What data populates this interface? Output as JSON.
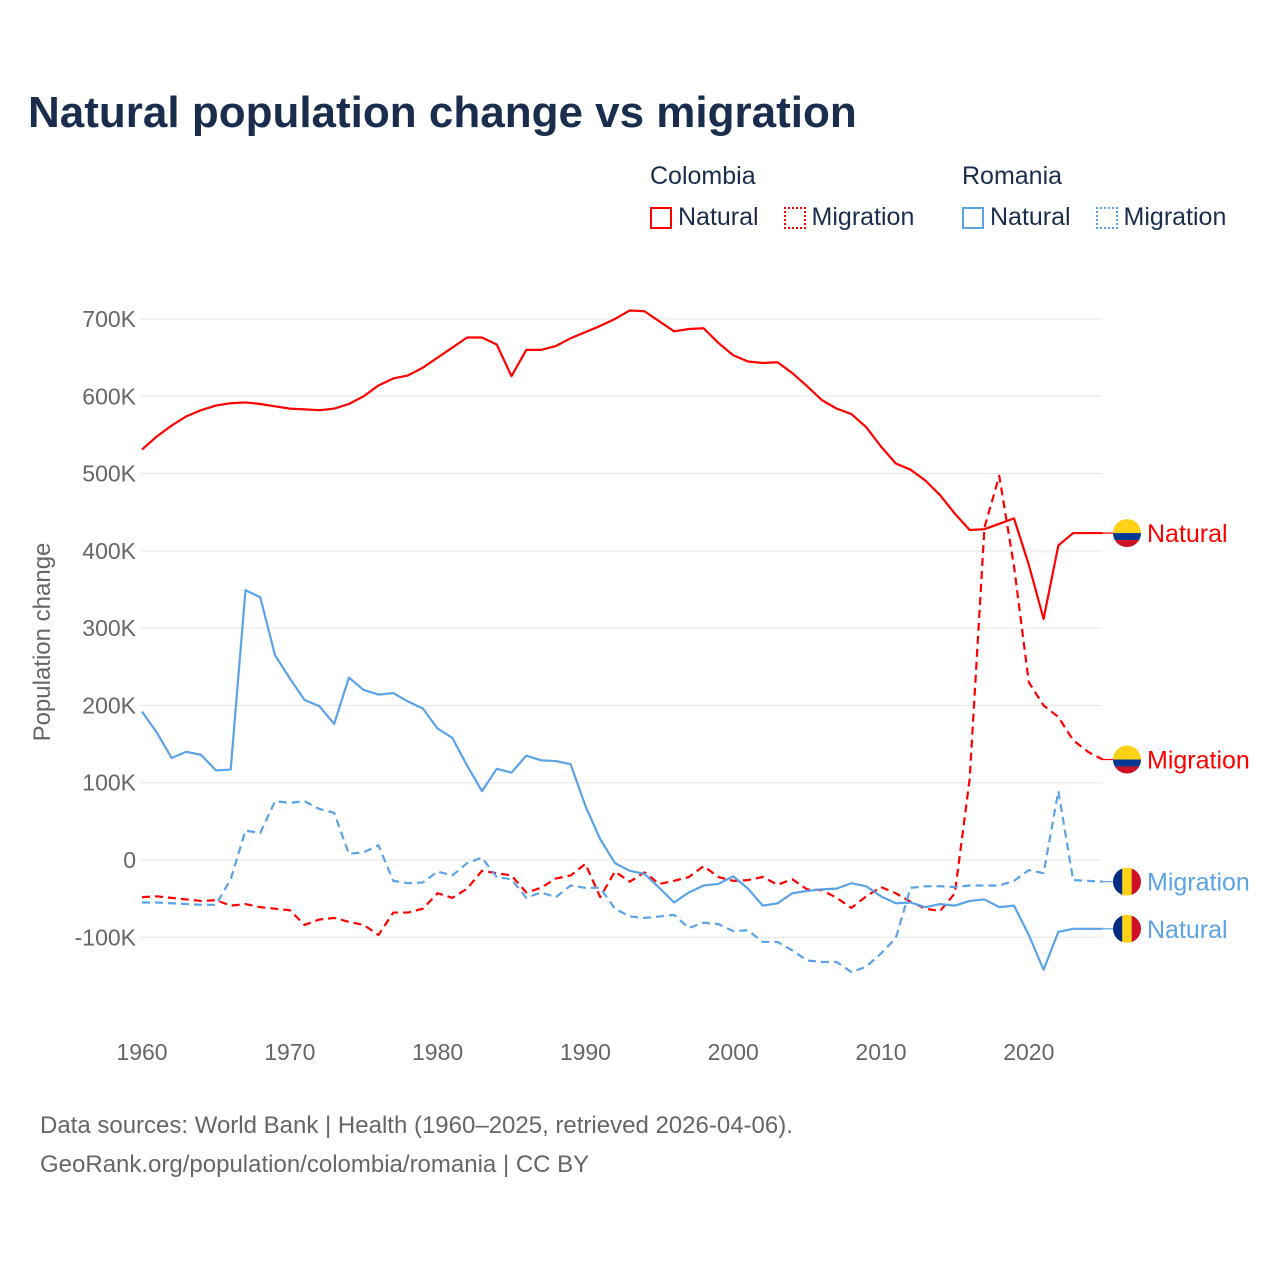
{
  "title": "Natural population change vs migration",
  "legend": {
    "groups": [
      {
        "country": "Colombia",
        "items": [
          {
            "label": "Natural",
            "style": "solid",
            "color": "#ff0000"
          },
          {
            "label": "Migration",
            "style": "dotted",
            "color": "#ff0000"
          }
        ]
      },
      {
        "country": "Romania",
        "items": [
          {
            "label": "Natural",
            "style": "solid",
            "color": "#5ba3e6"
          },
          {
            "label": "Migration",
            "style": "dotted",
            "color": "#5ba3e6"
          }
        ]
      }
    ]
  },
  "source": {
    "line1": "Data sources: World Bank | Health (1960–2025, retrieved 2026-04-06).",
    "line2": "GeoRank.org/population/colombia/romania | CC BY"
  },
  "chart_data": {
    "type": "line",
    "title": "Natural population change vs migration",
    "xlabel": "",
    "ylabel": "Population change",
    "xlim": [
      1960,
      2025
    ],
    "ylim": [
      -200000,
      750000
    ],
    "grid": true,
    "xticks": [
      1960,
      1970,
      1980,
      1990,
      2000,
      2010,
      2020
    ],
    "xtick_labels": [
      "1960",
      "1970",
      "1980",
      "1990",
      "2000",
      "2010",
      "2020"
    ],
    "yticks": [
      -100000,
      0,
      100000,
      200000,
      300000,
      400000,
      500000,
      600000,
      700000
    ],
    "ytick_labels": [
      "-100K",
      "0",
      "100K",
      "200K",
      "300K",
      "400K",
      "500K",
      "600K",
      "700K"
    ],
    "x_start": 1960,
    "series": [
      {
        "name": "Colombia Natural",
        "end_label": "Natural",
        "flag": "colombia",
        "color": "#ff0000",
        "dashed": false,
        "unit": "thousands",
        "values": [
          531,
          548,
          562,
          574,
          582,
          588,
          591,
          592,
          590,
          587,
          584,
          583,
          582,
          584,
          590,
          600,
          614,
          623,
          627,
          637,
          650,
          663,
          676,
          676,
          667,
          626,
          660,
          660,
          665,
          675,
          683,
          691,
          700,
          711,
          710,
          697,
          684,
          687,
          688,
          669,
          653,
          645,
          643,
          644,
          630,
          613,
          595,
          584,
          577,
          560,
          535,
          513,
          505,
          491,
          472,
          448,
          427,
          428,
          435,
          442,
          382,
          312,
          407,
          423,
          423,
          423
        ]
      },
      {
        "name": "Colombia Migration",
        "end_label": "Migration",
        "flag": "colombia",
        "color": "#ff0000",
        "dashed": true,
        "unit": "thousands",
        "values": [
          -48,
          -47,
          -49,
          -51,
          -53,
          -52,
          -59,
          -57,
          -61,
          -63,
          -65,
          -84,
          -77,
          -75,
          -80,
          -84,
          -97,
          -68,
          -68,
          -63,
          -43,
          -49,
          -37,
          -14,
          -17,
          -20,
          -42,
          -36,
          -24,
          -20,
          -5,
          -48,
          -15,
          -28,
          -16,
          -31,
          -27,
          -22,
          -8,
          -22,
          -27,
          -26,
          -22,
          -32,
          -25,
          -38,
          -39,
          -49,
          -62,
          -47,
          -35,
          -43,
          -54,
          -63,
          -66,
          -43,
          105,
          430,
          497,
          380,
          230,
          200,
          185,
          155,
          140,
          130
        ]
      },
      {
        "name": "Romania Migration",
        "end_label": "Migration",
        "flag": "romania",
        "color": "#5ba3e6",
        "dashed": true,
        "unit": "thousands",
        "values": [
          -55,
          -55,
          -56,
          -57,
          -58,
          -58,
          -25,
          38,
          35,
          76,
          74,
          76,
          66,
          61,
          8,
          10,
          19,
          -27,
          -30,
          -29,
          -15,
          -20,
          -4,
          3,
          -22,
          -25,
          -49,
          -42,
          -48,
          -33,
          -36,
          -36,
          -63,
          -73,
          -75,
          -73,
          -71,
          -88,
          -81,
          -83,
          -92,
          -91,
          -106,
          -106,
          -117,
          -130,
          -132,
          -132,
          -145,
          -138,
          -121,
          -101,
          -36,
          -34,
          -34,
          -35,
          -33,
          -33,
          -33,
          -27,
          -13,
          -17,
          89,
          -26,
          -27,
          -28
        ]
      },
      {
        "name": "Romania Natural",
        "end_label": "Natural",
        "flag": "romania",
        "color": "#5ba3e6",
        "dashed": false,
        "unit": "thousands",
        "values": [
          192,
          165,
          132,
          140,
          136,
          116,
          117,
          349,
          340,
          265,
          235,
          207,
          199,
          176,
          236,
          220,
          214,
          216,
          205,
          196,
          170,
          158,
          122,
          89,
          118,
          113,
          135,
          129,
          128,
          124,
          70,
          27,
          -4,
          -14,
          -18,
          -36,
          -55,
          -42,
          -33,
          -31,
          -21,
          -37,
          -59,
          -56,
          -43,
          -40,
          -38,
          -37,
          -30,
          -34,
          -47,
          -56,
          -55,
          -61,
          -57,
          -59,
          -53,
          -51,
          -61,
          -59,
          -97,
          -142,
          -93,
          -89,
          -89,
          -89
        ]
      }
    ]
  }
}
